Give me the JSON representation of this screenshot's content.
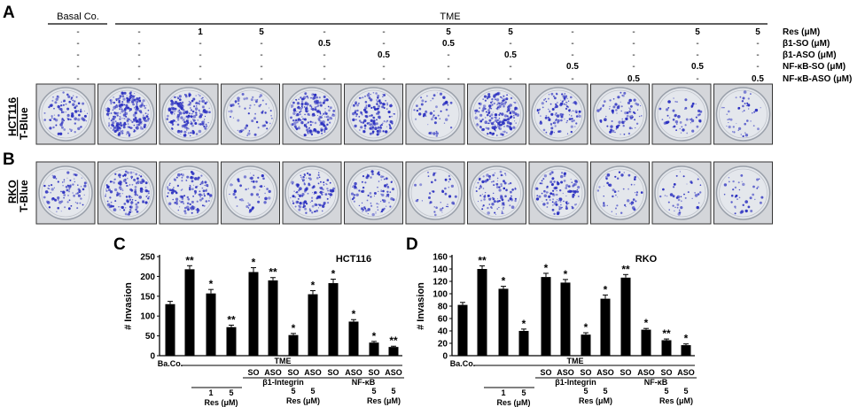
{
  "panels": {
    "A": "A",
    "B": "B",
    "C": "C",
    "D": "D"
  },
  "table": {
    "basal_label": "Basal Co.",
    "tme_label": "TME",
    "row_labels": [
      "Res (μM)",
      "β1-SO (μM)",
      "β1-ASO (μM)",
      "NF-κB-SO (μM)",
      "NF-κB-ASO (μM)"
    ],
    "rows": [
      [
        "-",
        "-",
        "1",
        "5",
        "-",
        "-",
        "5",
        "5",
        "-",
        "-",
        "5",
        "5"
      ],
      [
        "-",
        "-",
        "-",
        "-",
        "0.5",
        "-",
        "0.5",
        "-",
        "-",
        "-",
        "-",
        "-"
      ],
      [
        "-",
        "-",
        "-",
        "-",
        "-",
        "0.5",
        "-",
        "0.5",
        "-",
        "-",
        "-",
        "-"
      ],
      [
        "-",
        "-",
        "-",
        "-",
        "-",
        "-",
        "-",
        "-",
        "0.5",
        "-",
        "0.5",
        "-"
      ],
      [
        "-",
        "-",
        "-",
        "-",
        "-",
        "-",
        "-",
        "-",
        "-",
        "0.5",
        "-",
        "0.5"
      ]
    ]
  },
  "rows_images": {
    "hct116": {
      "cell_line": "HCT116",
      "stain": "T-Blue",
      "densities": [
        0.35,
        1.0,
        0.75,
        0.2,
        0.8,
        0.6,
        0.15,
        0.75,
        0.45,
        0.3,
        0.15,
        0.12
      ]
    },
    "rko": {
      "cell_line": "RKO",
      "stain": "T-Blue",
      "densities": [
        0.3,
        0.55,
        0.45,
        0.15,
        0.5,
        0.35,
        0.12,
        0.4,
        0.45,
        0.15,
        0.1,
        0.08
      ]
    }
  },
  "colors": {
    "colony": "#2a2fc0",
    "dish_bg": "#e4e7ec",
    "bar": "#000000"
  },
  "chart_data": [
    {
      "type": "bar",
      "title": "HCT116",
      "ylabel": "# Invasion",
      "ylim": [
        0,
        250
      ],
      "yticks": [
        "0",
        "50",
        "100",
        "150",
        "200",
        "250"
      ],
      "values": [
        130,
        218,
        157,
        72,
        211,
        190,
        52,
        155,
        183,
        86,
        33,
        22
      ],
      "errors": [
        7,
        9,
        10,
        5,
        11,
        7,
        4,
        9,
        10,
        5,
        3,
        2
      ],
      "significance": [
        "",
        "**",
        "*",
        "**",
        "*",
        "**",
        "*",
        "*",
        "*",
        "*",
        "*",
        "**"
      ],
      "x_labels": {
        "baco": "Ba.Co.",
        "tme": "TME",
        "so": "SO",
        "aso": "ASO",
        "integrin": "β1-Integrin",
        "nfkb": "NF-κB",
        "res1": "1",
        "res5": "5",
        "res_unit": "Res (μM)"
      }
    },
    {
      "type": "bar",
      "title": "RKO",
      "ylabel": "# Invasion",
      "ylim": [
        0,
        160
      ],
      "yticks": [
        "0",
        "20",
        "40",
        "60",
        "80",
        "100",
        "120",
        "140",
        "160"
      ],
      "values": [
        82,
        140,
        108,
        40,
        127,
        118,
        34,
        92,
        126,
        42,
        25,
        17
      ],
      "errors": [
        4,
        5,
        4,
        3,
        6,
        5,
        3,
        6,
        5,
        2,
        2,
        2
      ],
      "significance": [
        "",
        "**",
        "*",
        "*",
        "*",
        "*",
        "*",
        "*",
        "**",
        "*",
        "**",
        "*"
      ],
      "x_labels": {
        "baco": "Ba.Co.",
        "tme": "TME",
        "so": "SO",
        "aso": "ASO",
        "integrin": "β1-Integrin",
        "nfkb": "NF-κB",
        "res1": "1",
        "res5": "5",
        "res_unit": "Res (μM)"
      }
    }
  ]
}
